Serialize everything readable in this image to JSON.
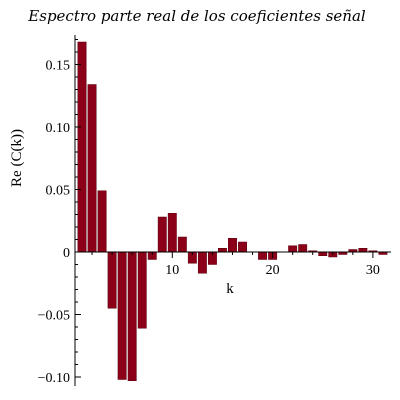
{
  "chart_data": {
    "type": "bar",
    "title": "Espectro parte real de los coeficientes señal",
    "xlabel": "k",
    "ylabel": "Re (C(k))",
    "x": [
      1,
      2,
      3,
      4,
      5,
      6,
      7,
      8,
      9,
      10,
      11,
      12,
      13,
      14,
      15,
      16,
      17,
      18,
      19,
      20,
      21,
      22,
      23,
      24,
      25,
      26,
      27,
      28,
      29,
      30,
      31
    ],
    "values": [
      0.168,
      0.134,
      0.049,
      -0.045,
      -0.102,
      -0.103,
      -0.061,
      -0.006,
      0.028,
      0.031,
      0.012,
      -0.009,
      -0.017,
      -0.01,
      0.003,
      0.011,
      0.008,
      0.0,
      -0.006,
      -0.006,
      0.0,
      0.005,
      0.006,
      0.001,
      -0.003,
      -0.004,
      -0.002,
      0.002,
      0.003,
      0.001,
      -0.002
    ],
    "xlim": [
      0.5,
      31.5
    ],
    "ylim": [
      -0.101,
      0.17
    ],
    "xticks": [
      10,
      20,
      30
    ],
    "yticks": [
      0.15,
      0.1,
      0.05,
      0,
      -0.05,
      -0.1
    ],
    "ytick_labels": [
      "0.15",
      "0.10",
      "0.05",
      "0",
      "−0.05",
      "−0.10"
    ],
    "xtick_labels": [
      "10",
      "20",
      "30"
    ],
    "bar_color": "#8b0018",
    "grid": false
  }
}
